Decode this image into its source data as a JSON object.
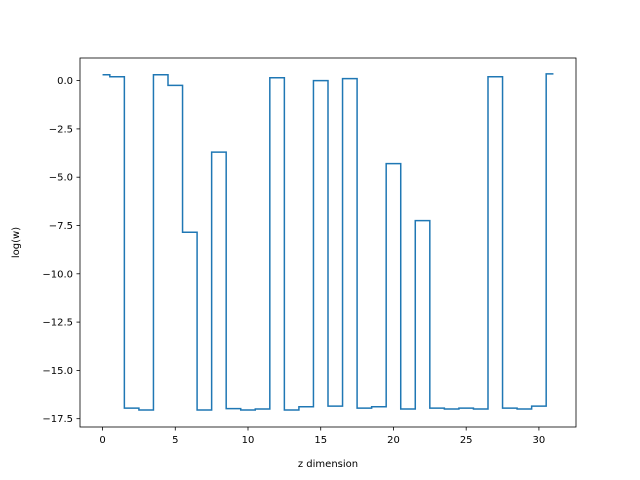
{
  "chart_data": {
    "type": "line",
    "drawstyle": "steps-mid",
    "title": "",
    "xlabel": "z dimension",
    "ylabel": "log(w)",
    "xlim": [
      -1.55,
      32.55
    ],
    "ylim": [
      -17.93,
      1.17
    ],
    "xticks": [
      0,
      5,
      10,
      15,
      20,
      25,
      30
    ],
    "xtick_labels": [
      "0",
      "5",
      "10",
      "15",
      "20",
      "25",
      "30"
    ],
    "yticks": [
      0.0,
      -2.5,
      -5.0,
      -7.5,
      -10.0,
      -12.5,
      -15.0,
      -17.5
    ],
    "ytick_labels": [
      "0.0",
      "−2.5",
      "−5.0",
      "−7.5",
      "−10.0",
      "−12.5",
      "−15.0",
      "−17.5"
    ],
    "grid": false,
    "color": "#1f77b4",
    "x": [
      0,
      1,
      2,
      3,
      4,
      5,
      6,
      7,
      8,
      9,
      10,
      11,
      12,
      13,
      14,
      15,
      16,
      17,
      18,
      19,
      20,
      21,
      22,
      23,
      24,
      25,
      26,
      27,
      28,
      29,
      30,
      31
    ],
    "y": [
      0.3,
      0.2,
      -16.95,
      -17.05,
      0.3,
      -0.25,
      -7.85,
      -17.05,
      -3.7,
      -16.98,
      -17.05,
      -17.0,
      0.15,
      -17.05,
      -16.88,
      0.0,
      -16.85,
      0.1,
      -16.95,
      -16.88,
      -4.3,
      -17.0,
      -7.25,
      -16.95,
      -17.0,
      -16.95,
      -17.0,
      0.2,
      -16.95,
      -17.0,
      -16.85,
      0.35
    ]
  }
}
